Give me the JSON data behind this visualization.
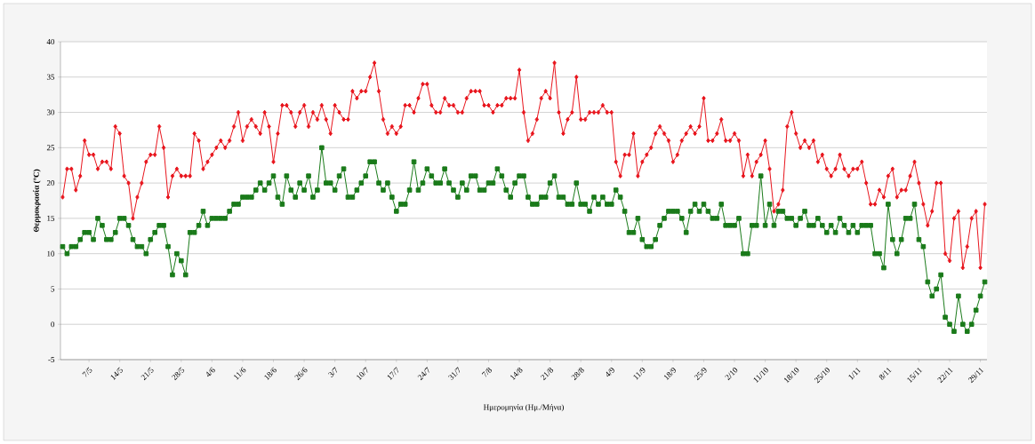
{
  "chart_data": {
    "type": "line",
    "xlabel": "Ημερομηνία (Ημ./Μήνα)",
    "ylabel": "Θερμοκρασία (°C)",
    "categories": [
      null,
      null,
      null,
      null,
      null,
      null,
      "7/5",
      null,
      null,
      null,
      null,
      null,
      null,
      "14/5",
      null,
      null,
      null,
      null,
      null,
      null,
      "21/5",
      null,
      null,
      null,
      null,
      null,
      null,
      "28/5",
      null,
      null,
      null,
      null,
      null,
      null,
      "4/6",
      null,
      null,
      null,
      null,
      null,
      null,
      "11/6",
      null,
      null,
      null,
      null,
      null,
      null,
      "18/6",
      null,
      null,
      null,
      null,
      null,
      null,
      "26/6",
      null,
      null,
      null,
      null,
      null,
      null,
      "3/7",
      null,
      null,
      null,
      null,
      null,
      null,
      "10/7",
      null,
      null,
      null,
      null,
      null,
      null,
      "17/7",
      null,
      null,
      null,
      null,
      null,
      null,
      "24/7",
      null,
      null,
      null,
      null,
      null,
      null,
      "31/7",
      null,
      null,
      null,
      null,
      null,
      null,
      "7/8",
      null,
      null,
      null,
      null,
      null,
      null,
      "14/8",
      null,
      null,
      null,
      null,
      null,
      null,
      "21/8",
      null,
      null,
      null,
      null,
      null,
      null,
      "28/8",
      null,
      null,
      null,
      null,
      null,
      null,
      "4/9",
      null,
      null,
      null,
      null,
      null,
      null,
      "11/9",
      null,
      null,
      null,
      null,
      null,
      null,
      "18/9",
      null,
      null,
      null,
      null,
      null,
      null,
      "25/9",
      null,
      null,
      null,
      null,
      null,
      null,
      "2/10",
      null,
      null,
      null,
      null,
      null,
      null,
      "11/10",
      null,
      null,
      null,
      null,
      null,
      null,
      "18/10",
      null,
      null,
      null,
      null,
      null,
      null,
      "25/10",
      null,
      null,
      null,
      null,
      null,
      null,
      "1/11",
      null,
      null,
      null,
      null,
      null,
      null,
      "8/11",
      null,
      null,
      null,
      null,
      null,
      null,
      "15/11",
      null,
      null,
      null,
      null,
      null,
      null,
      "22/11",
      null,
      null,
      null,
      null,
      null,
      null,
      "29/11",
      null
    ],
    "series": [
      {
        "color": "#e8141c",
        "marker": "diamond",
        "values": [
          18,
          22,
          22,
          19,
          21,
          26,
          24,
          24,
          22,
          23,
          23,
          22,
          28,
          27,
          21,
          20,
          15,
          18,
          20,
          23,
          24,
          24,
          28,
          25,
          18,
          21,
          22,
          21,
          21,
          21,
          27,
          26,
          22,
          23,
          24,
          25,
          26,
          25,
          26,
          28,
          30,
          26,
          28,
          29,
          28,
          27,
          30,
          28,
          23,
          27,
          31,
          31,
          30,
          28,
          30,
          31,
          28,
          30,
          29,
          31,
          29,
          27,
          31,
          30,
          29,
          29,
          33,
          32,
          33,
          33,
          35,
          37,
          33,
          29,
          27,
          28,
          27,
          28,
          31,
          31,
          30,
          32,
          34,
          34,
          31,
          30,
          30,
          32,
          31,
          31,
          30,
          30,
          32,
          33,
          33,
          33,
          31,
          31,
          30,
          31,
          31,
          32,
          32,
          32,
          36,
          30,
          26,
          27,
          29,
          32,
          33,
          32,
          37,
          30,
          27,
          29,
          30,
          35,
          29,
          29,
          30,
          30,
          30,
          31,
          30,
          30,
          23,
          21,
          24,
          24,
          27,
          21,
          23,
          24,
          25,
          27,
          28,
          27,
          26,
          23,
          24,
          26,
          27,
          28,
          27,
          28,
          32,
          26,
          26,
          27,
          29,
          26,
          26,
          27,
          26,
          21,
          24,
          21,
          23,
          24,
          26,
          22,
          16,
          17,
          19,
          28,
          30,
          27,
          25,
          26,
          25,
          26,
          23,
          24,
          22,
          21,
          22,
          24,
          22,
          21,
          22,
          22,
          23,
          20,
          17,
          17,
          19,
          18,
          21,
          22,
          18,
          19,
          19,
          21,
          23,
          20,
          17,
          14,
          16,
          20,
          20,
          10,
          9,
          15,
          16,
          8,
          11,
          15,
          16,
          8,
          17
        ]
      },
      {
        "color": "#1a7a1a",
        "marker": "square",
        "values": [
          11,
          10,
          11,
          11,
          12,
          13,
          13,
          12,
          15,
          14,
          12,
          12,
          13,
          15,
          15,
          14,
          12,
          11,
          11,
          10,
          12,
          13,
          14,
          14,
          11,
          7,
          10,
          9,
          7,
          13,
          13,
          14,
          16,
          14,
          15,
          15,
          15,
          15,
          16,
          17,
          17,
          18,
          18,
          18,
          19,
          20,
          19,
          20,
          21,
          18,
          17,
          21,
          19,
          18,
          20,
          19,
          21,
          18,
          19,
          25,
          20,
          20,
          19,
          21,
          22,
          18,
          18,
          19,
          20,
          21,
          23,
          23,
          20,
          19,
          20,
          18,
          16,
          17,
          17,
          19,
          23,
          19,
          20,
          22,
          21,
          20,
          20,
          22,
          20,
          19,
          18,
          20,
          19,
          21,
          21,
          19,
          19,
          20,
          20,
          22,
          21,
          19,
          18,
          20,
          21,
          21,
          18,
          17,
          17,
          18,
          18,
          20,
          21,
          18,
          18,
          17,
          17,
          20,
          17,
          17,
          16,
          18,
          17,
          18,
          17,
          17,
          19,
          18,
          16,
          13,
          13,
          15,
          12,
          11,
          11,
          12,
          14,
          15,
          16,
          16,
          16,
          15,
          13,
          16,
          17,
          16,
          17,
          16,
          15,
          15,
          17,
          14,
          14,
          14,
          15,
          10,
          10,
          14,
          14,
          21,
          14,
          17,
          14,
          16,
          16,
          15,
          15,
          14,
          15,
          16,
          14,
          14,
          15,
          14,
          13,
          14,
          13,
          15,
          14,
          13,
          14,
          13,
          14,
          14,
          14,
          10,
          10,
          8,
          17,
          12,
          10,
          12,
          15,
          15,
          17,
          12,
          11,
          6,
          4,
          5,
          7,
          1,
          0,
          -1,
          4,
          0,
          -1,
          0,
          2,
          4,
          6
        ]
      }
    ],
    "ylim": [
      -5,
      40
    ],
    "yticks": [
      -5,
      0,
      5,
      10,
      15,
      20,
      25,
      30,
      35,
      40
    ],
    "grid": "y",
    "line_style": "solid"
  }
}
